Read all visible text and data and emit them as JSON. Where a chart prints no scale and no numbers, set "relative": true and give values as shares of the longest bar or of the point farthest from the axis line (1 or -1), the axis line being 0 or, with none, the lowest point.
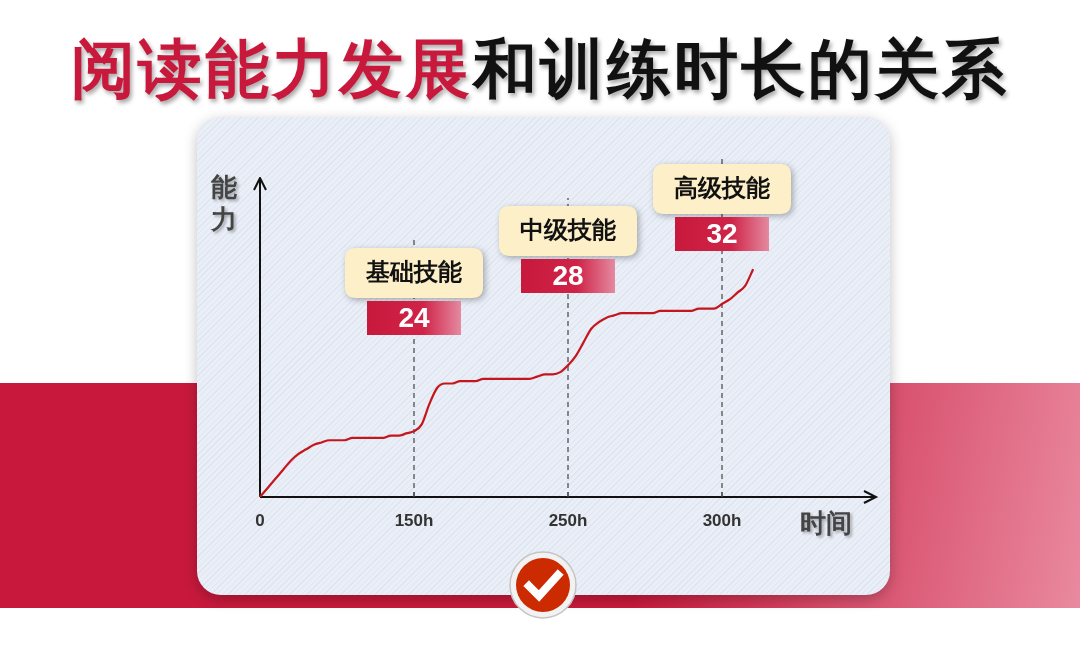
{
  "chart_data": {
    "type": "line",
    "title": "阅读能力发展和训练时长的关系",
    "xlabel": "时间",
    "ylabel": "能力",
    "relative": true,
    "marker": "none",
    "line_style": "solid",
    "categories": [
      "0",
      null,
      null,
      null,
      null,
      null,
      null,
      null,
      null,
      null,
      null,
      null,
      null,
      null,
      null,
      null,
      null,
      null,
      null,
      null,
      "150h",
      null,
      null,
      null,
      null,
      null,
      null,
      null,
      null,
      null,
      null,
      null,
      null,
      null,
      null,
      null,
      null,
      null,
      null,
      null,
      "250h",
      null,
      null,
      null,
      null,
      null,
      null,
      null,
      null,
      null,
      null,
      null,
      null,
      null,
      null,
      null,
      null,
      null,
      null,
      null,
      "300h",
      null,
      null,
      null,
      null,
      null,
      null,
      null,
      null,
      null,
      null,
      null,
      null,
      null,
      null,
      null,
      null,
      null,
      null,
      null,
      null
    ],
    "series": [
      {
        "color": "#c4161c",
        "values": [
          0,
          0.04,
          0.08,
          0.12,
          0.16,
          0.19,
          0.21,
          0.23,
          0.24,
          0.25,
          0.25,
          0.25,
          0.26,
          0.26,
          0.26,
          0.26,
          0.26,
          0.27,
          0.27,
          0.28,
          0.29,
          0.32,
          0.41,
          0.48,
          0.5,
          0.5,
          0.51,
          0.51,
          0.51,
          0.52,
          0.52,
          0.52,
          0.52,
          0.52,
          0.52,
          0.52,
          0.53,
          0.54,
          0.54,
          0.55,
          0.58,
          0.62,
          0.68,
          0.74,
          0.77,
          0.79,
          0.8,
          0.81,
          0.81,
          0.81,
          0.81,
          0.81,
          0.82,
          0.82,
          0.82,
          0.82,
          0.82,
          0.83,
          0.83,
          0.83,
          0.85,
          0.87,
          0.9,
          0.93,
          1,
          null,
          null,
          null,
          null,
          null,
          null,
          null,
          null,
          null,
          null,
          null,
          null,
          null,
          null,
          null,
          null
        ]
      }
    ],
    "ref_lines": [
      {
        "axis": "x",
        "value": "150h",
        "label": "基础技能",
        "color": "#444444",
        "line_style": "dashed"
      },
      {
        "axis": "x",
        "value": "250h",
        "label": "中级技能",
        "color": "#444444",
        "line_style": "dashed"
      },
      {
        "axis": "x",
        "value": "300h",
        "label": "高级技能",
        "color": "#444444",
        "line_style": "dashed"
      }
    ],
    "annotations": [
      {
        "text": "24",
        "x": "150h"
      },
      {
        "text": "28",
        "x": "250h"
      },
      {
        "text": "32",
        "x": "300h"
      }
    ]
  }
}
